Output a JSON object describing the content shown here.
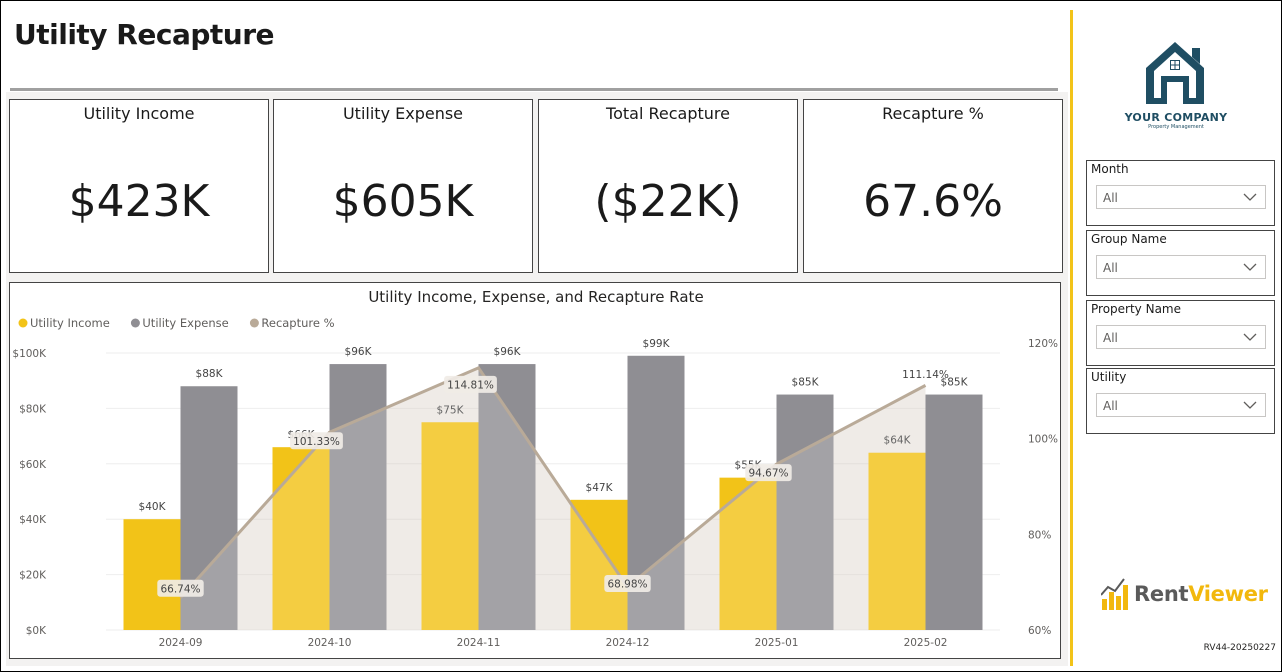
{
  "page": {
    "title": "Utility Recapture",
    "footer_code": "RV44-20250227"
  },
  "kpis": [
    {
      "label": "Utility Income",
      "value": "$423K"
    },
    {
      "label": "Utility Expense",
      "value": "$605K"
    },
    {
      "label": "Total Recapture",
      "value": "($22K)"
    },
    {
      "label": "Recapture %",
      "value": "67.6%"
    }
  ],
  "company": {
    "name": "YOUR COMPANY",
    "tagline": "Property Management"
  },
  "brand": {
    "rent": "Rent",
    "viewer": "Viewer"
  },
  "slicers": [
    {
      "label": "Month",
      "value": "All"
    },
    {
      "label": "Group Name",
      "value": "All"
    },
    {
      "label": "Property Name",
      "value": "All"
    },
    {
      "label": "Utility",
      "value": "All"
    }
  ],
  "colors": {
    "income": "#f2c318",
    "expense": "#8f8e93",
    "recapture": "#b9aa98",
    "accent": "#f2c318",
    "logo": "#1f4e63"
  },
  "chart_data": {
    "type": "bar",
    "title": "Utility Income, Expense, and Recapture Rate",
    "legend_position": "top-left",
    "categories": [
      "2024-09",
      "2024-10",
      "2024-11",
      "2024-12",
      "2025-01",
      "2025-02"
    ],
    "series": [
      {
        "name": "Utility Income",
        "kind": "bar",
        "axis": "left",
        "values": [
          40,
          66,
          75,
          47,
          55,
          64
        ],
        "labels": [
          "$40K",
          "$66K",
          "$75K",
          "$47K",
          "$55K",
          "$64K"
        ]
      },
      {
        "name": "Utility Expense",
        "kind": "bar",
        "axis": "left",
        "values": [
          88,
          96,
          96,
          99,
          85,
          85
        ],
        "labels": [
          "$88K",
          "$96K",
          "$96K",
          "$99K",
          "$85K",
          "$85K"
        ]
      },
      {
        "name": "Recapture %",
        "kind": "area-line",
        "axis": "right",
        "values": [
          66.74,
          101.33,
          114.81,
          68.98,
          94.67,
          111.14
        ],
        "labels": [
          "66.74%",
          "101.33%",
          "114.81%",
          "68.98%",
          "94.67%",
          "111.14%"
        ]
      }
    ],
    "left_axis": {
      "ylim": [
        0,
        100
      ],
      "ticks": [
        0,
        20,
        40,
        60,
        80,
        100
      ],
      "tick_labels": [
        "$0K",
        "$20K",
        "$40K",
        "$60K",
        "$80K",
        "$100K"
      ]
    },
    "right_axis": {
      "ylim": [
        60,
        120
      ],
      "ticks": [
        60,
        80,
        100,
        120
      ],
      "tick_labels": [
        "60%",
        "80%",
        "100%",
        "120%"
      ]
    },
    "grid": true
  }
}
